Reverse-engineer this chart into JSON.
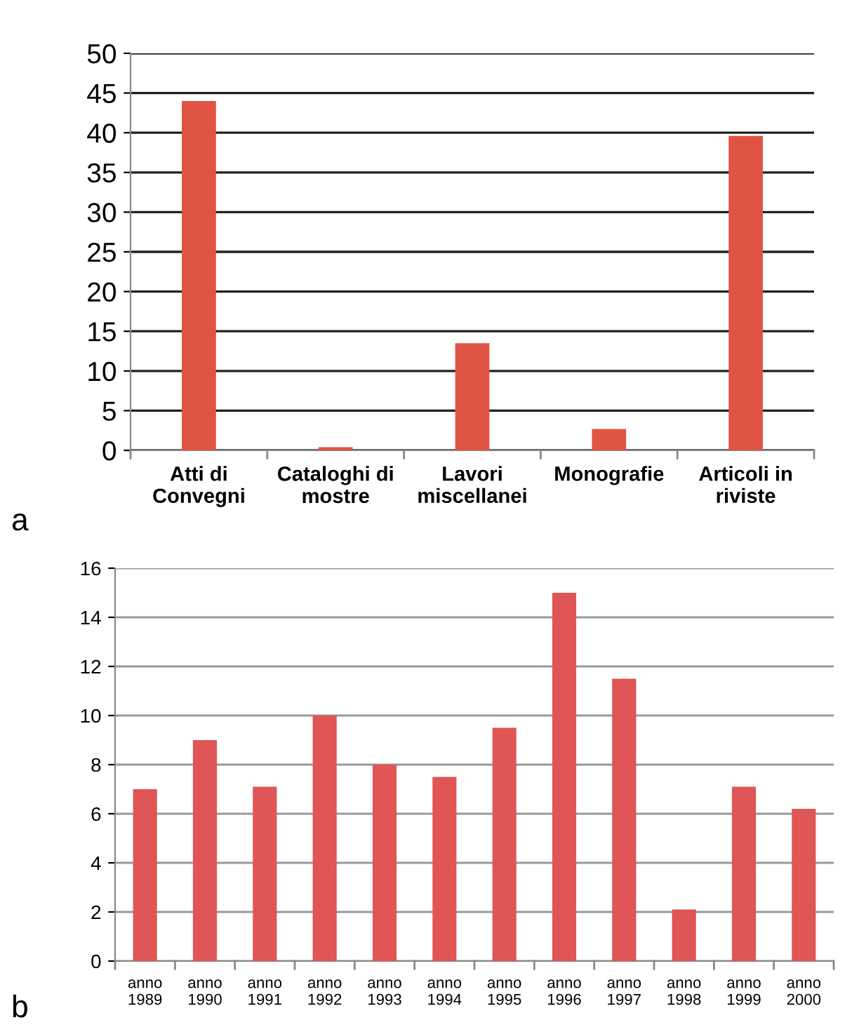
{
  "chart_data": [
    {
      "type": "bar",
      "categories": [
        "Atti di\nConvegni",
        "Cataloghi di\nmostre",
        "Lavori\nmiscellanei",
        "Monografie",
        "Articoli in\nriviste"
      ],
      "values": [
        44,
        0.4,
        13.5,
        2.7,
        39.6
      ],
      "color": "#e05444",
      "ylim": [
        0,
        50
      ],
      "yticks": [
        0,
        5,
        10,
        15,
        20,
        25,
        30,
        35,
        40,
        45,
        50
      ],
      "grid": "y",
      "annotations": [
        "a"
      ]
    },
    {
      "type": "bar",
      "categories": [
        "anno\n1989",
        "anno\n1990",
        "anno\n1991",
        "anno\n1992",
        "anno\n1993",
        "anno\n1994",
        "anno\n1995",
        "anno\n1996",
        "anno\n1997",
        "anno\n1998",
        "anno\n1999",
        "anno\n2000"
      ],
      "values": [
        7,
        9,
        7.1,
        10,
        8,
        7.5,
        9.5,
        15,
        11.5,
        2.1,
        7.1,
        6.2
      ],
      "color": "#e05555",
      "ylim": [
        0,
        16
      ],
      "yticks": [
        0,
        2,
        4,
        6,
        8,
        10,
        12,
        14,
        16
      ],
      "grid": "y",
      "annotations": [
        "b"
      ]
    }
  ]
}
